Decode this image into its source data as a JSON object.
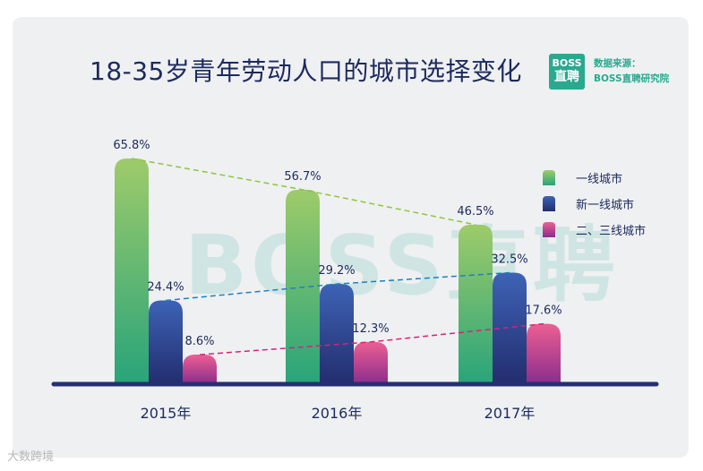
{
  "title": "18-35岁青年劳动人口的城市选择变化",
  "logo": {
    "line1": "BOSS",
    "line2": "直聘"
  },
  "source": {
    "line1": "数据来源：",
    "line2": "BOSS直聘研究院"
  },
  "watermark": "BOSS直聘",
  "footer": "大数跨境",
  "colors": {
    "tier1": [
      "#9ecb6a",
      "#28a47a"
    ],
    "newtier1": [
      "#3d63b5",
      "#232d6e"
    ],
    "tier23": [
      "#ec5f92",
      "#8a2d8d"
    ],
    "axis": "#243070"
  },
  "chart_data": {
    "type": "bar",
    "categories": [
      "2015年",
      "2016年",
      "2017年"
    ],
    "series": [
      {
        "name": "一线城市",
        "values": [
          65.8,
          56.7,
          46.5
        ],
        "labels": [
          "65.8%",
          "56.7%",
          "46.5%"
        ],
        "trend_color": "#8cc63f"
      },
      {
        "name": "新一线城市",
        "values": [
          24.4,
          29.2,
          32.5
        ],
        "labels": [
          "24.4%",
          "29.2%",
          "32.5%"
        ],
        "trend_color": "#1f7fc4"
      },
      {
        "name": "二、三线城市",
        "values": [
          8.6,
          12.3,
          17.6
        ],
        "labels": [
          "8.6%",
          "12.3%",
          "17.6%"
        ],
        "trend_color": "#d8217c"
      }
    ],
    "legend_position": "right",
    "grid": false
  }
}
